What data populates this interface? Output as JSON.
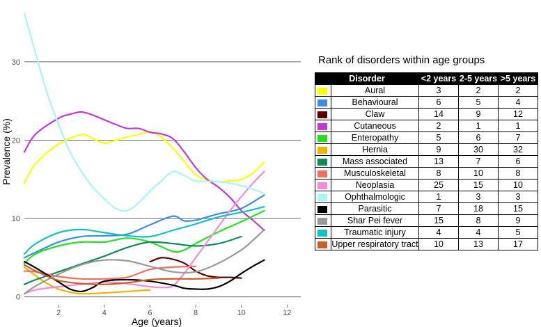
{
  "chart_data": {
    "type": "line",
    "title": "",
    "xlabel": "Age (years)",
    "ylabel": "Prevalence (%)",
    "xlim": [
      0.5,
      12.6
    ],
    "ylim": [
      -1,
      37
    ],
    "xticks": [
      2,
      4,
      6,
      8,
      10,
      12
    ],
    "yticks": [
      0,
      10,
      20,
      30
    ],
    "grid": "horizontal",
    "series": [
      {
        "name": "Aural",
        "color": "#ffff00",
        "x": [
          0.5,
          1,
          2,
          3,
          3.5,
          4,
          4.5,
          5,
          5.5,
          6,
          6.5,
          7,
          7.5,
          8,
          8.5,
          9,
          9.5,
          10,
          10.5,
          11
        ],
        "y": [
          14.5,
          17,
          19.5,
          20.7,
          20.2,
          19.6,
          20,
          20.4,
          20.7,
          21.1,
          20.4,
          19,
          17.3,
          15.6,
          14.9,
          14.7,
          14.8,
          15,
          15.8,
          17.2
        ]
      },
      {
        "name": "Behavioural",
        "color": "#3a8ee6",
        "x": [
          0.5,
          1,
          2,
          3,
          4,
          5,
          6,
          7,
          7.5,
          8,
          8.5,
          9,
          10,
          11
        ],
        "y": [
          5,
          5.7,
          7,
          7.7,
          7.8,
          8,
          9.2,
          10.3,
          9.7,
          9.8,
          10.2,
          10.6,
          11.3,
          13
        ]
      },
      {
        "name": "Claw",
        "color": "#5c0000",
        "x": [
          6,
          6.5,
          7,
          7.5,
          8,
          8.5,
          9,
          9.5,
          10
        ],
        "y": [
          4.5,
          5,
          4.8,
          4.3,
          3.3,
          2.7,
          2.5,
          2.5,
          2.4
        ]
      },
      {
        "name": "Cutaneous",
        "color": "#c03ad6",
        "x": [
          0.5,
          1,
          2,
          2.5,
          3,
          3.5,
          4,
          4.5,
          5,
          5.5,
          6,
          6.5,
          7,
          7.5,
          8,
          8.5,
          9,
          9.5,
          10,
          10.5,
          11
        ],
        "y": [
          18.5,
          20.8,
          22.8,
          23.3,
          23.6,
          23.2,
          22.6,
          22,
          21.5,
          21.5,
          21,
          20.8,
          20.2,
          18.5,
          16.5,
          15,
          14,
          12.7,
          11,
          9.8,
          8.5
        ]
      },
      {
        "name": "Enteropathy",
        "color": "#22e022",
        "x": [
          0.5,
          1,
          2,
          3,
          4,
          5,
          6,
          7,
          7.5,
          8,
          9,
          10,
          11
        ],
        "y": [
          4.3,
          5.5,
          6.5,
          7,
          7,
          7.5,
          7,
          5.8,
          6,
          6.8,
          8.3,
          9.6,
          11
        ]
      },
      {
        "name": "Hernia",
        "color": "#f2b200",
        "x": [
          0.5,
          1,
          1.5,
          2,
          2.5,
          3,
          4,
          5,
          6
        ],
        "y": [
          3.8,
          2.7,
          1.7,
          1,
          0.6,
          0.4,
          0.5,
          0.7,
          0.9
        ]
      },
      {
        "name": "Mass associated",
        "color": "#0f8a55",
        "x": [
          0.5,
          1,
          2,
          3,
          4,
          5,
          6,
          7,
          8,
          9,
          10
        ],
        "y": [
          1.6,
          2.2,
          3.2,
          4.2,
          5.2,
          6.3,
          7,
          6.8,
          6.5,
          6.8,
          7.7
        ]
      },
      {
        "name": "Musculoskeletal",
        "color": "#f07060",
        "x": [
          0.5,
          1,
          2,
          3,
          4,
          5,
          6,
          7,
          8
        ],
        "y": [
          3.3,
          3.2,
          2.6,
          2.3,
          2.3,
          2.5,
          3.5,
          3.8,
          3.9
        ]
      },
      {
        "name": "Neoplasia",
        "color": "#f58ad8",
        "x": [
          0.5,
          1,
          2,
          3,
          4,
          5,
          6,
          6.5,
          7,
          7.5,
          8,
          8.5,
          9,
          9.5,
          10,
          10.5,
          11
        ],
        "y": [
          0.4,
          0.9,
          1.3,
          1.6,
          1.9,
          1.7,
          1.3,
          1.2,
          1.4,
          3,
          5,
          7,
          9,
          11,
          12.8,
          14.5,
          16
        ]
      },
      {
        "name": "Ophthalmologic",
        "color": "#a8f5f8",
        "x": [
          0.5,
          1,
          1.5,
          2,
          2.5,
          3,
          3.5,
          4,
          4.5,
          5,
          5.5,
          6,
          6.5,
          7,
          7.5,
          8,
          9,
          10,
          11
        ],
        "y": [
          36.2,
          31,
          26,
          22,
          18.5,
          16,
          14,
          12.5,
          11.3,
          11,
          12,
          13.5,
          14.8,
          16,
          15.5,
          14.8,
          14.7,
          14.2,
          13.2
        ]
      },
      {
        "name": "Parasitic",
        "color": "#000000",
        "x": [
          0.5,
          1,
          2,
          2.5,
          3,
          3.5,
          4,
          5,
          6,
          7,
          7.5,
          8,
          8.5,
          9,
          9.5,
          10,
          10.5,
          11
        ],
        "y": [
          4.5,
          3.7,
          1.9,
          1,
          0.7,
          1.2,
          2,
          2.2,
          2,
          1.5,
          1.1,
          1,
          1,
          1.3,
          2,
          3,
          3.9,
          4.7
        ]
      },
      {
        "name": "Shar Pei fever",
        "color": "#9a9a9a",
        "x": [
          0.5,
          1,
          2,
          3,
          4,
          5,
          6,
          7,
          8,
          9,
          10,
          10.5,
          11
        ],
        "y": [
          0.4,
          1.4,
          2.9,
          4.1,
          4.7,
          4.6,
          3.9,
          3.2,
          3.2,
          4.3,
          6,
          7.2,
          8.6
        ]
      },
      {
        "name": "Traumatic injury",
        "color": "#12c0c8",
        "x": [
          0.5,
          1,
          2,
          3,
          4,
          5,
          6,
          7,
          8,
          9,
          10,
          11
        ],
        "y": [
          5.5,
          6.8,
          8.2,
          8.6,
          8.2,
          7.8,
          7.7,
          8.5,
          9.3,
          10.2,
          10.8,
          11.5
        ]
      },
      {
        "name": "Upper respiratory tract",
        "color": "#c8602a",
        "x": [
          0.5,
          1,
          2,
          3,
          4,
          5,
          6,
          7,
          8,
          9
        ],
        "y": [
          4.1,
          3.3,
          2.1,
          1.7,
          1.6,
          1.8,
          2.2,
          2.3,
          2.3,
          2.4
        ]
      }
    ]
  },
  "rank_table": {
    "title": "Rank of disorders within age groups",
    "headers": [
      "Disorder",
      "<2 years",
      "2-5 years",
      ">5 years"
    ],
    "rows": [
      {
        "name": "Aural",
        "color": "#ffff00",
        "r1": "3",
        "r2": "2",
        "r3": "2"
      },
      {
        "name": "Behavioural",
        "color": "#3a8ee6",
        "r1": "6",
        "r2": "5",
        "r3": "4"
      },
      {
        "name": "Claw",
        "color": "#5c0000",
        "r1": "14",
        "r2": "9",
        "r3": "12"
      },
      {
        "name": "Cutaneous",
        "color": "#c03ad6",
        "r1": "2",
        "r2": "1",
        "r3": "1"
      },
      {
        "name": "Enteropathy",
        "color": "#22e022",
        "r1": "5",
        "r2": "6",
        "r3": "7"
      },
      {
        "name": "Hernia",
        "color": "#f2b200",
        "r1": "9",
        "r2": "30",
        "r3": "32"
      },
      {
        "name": "Mass associated",
        "color": "#0f8a55",
        "r1": "13",
        "r2": "7",
        "r3": "6"
      },
      {
        "name": "Musculoskeletal",
        "color": "#f07060",
        "r1": "8",
        "r2": "10",
        "r3": "8"
      },
      {
        "name": "Neoplasia",
        "color": "#f58ad8",
        "r1": "25",
        "r2": "15",
        "r3": "10"
      },
      {
        "name": "Ophthalmologic",
        "color": "#a8f5f8",
        "r1": "1",
        "r2": "3",
        "r3": "3"
      },
      {
        "name": "Parasitic",
        "color": "#000000",
        "r1": "7",
        "r2": "18",
        "r3": "15"
      },
      {
        "name": "Shar Pei fever",
        "color": "#9a9a9a",
        "r1": "15",
        "r2": "8",
        "r3": "9"
      },
      {
        "name": "Traumatic injury",
        "color": "#12c0c8",
        "r1": "4",
        "r2": "4",
        "r3": "5"
      },
      {
        "name": "Upper respiratory tract",
        "color": "#c8602a",
        "r1": "10",
        "r2": "13",
        "r3": "17"
      }
    ]
  }
}
